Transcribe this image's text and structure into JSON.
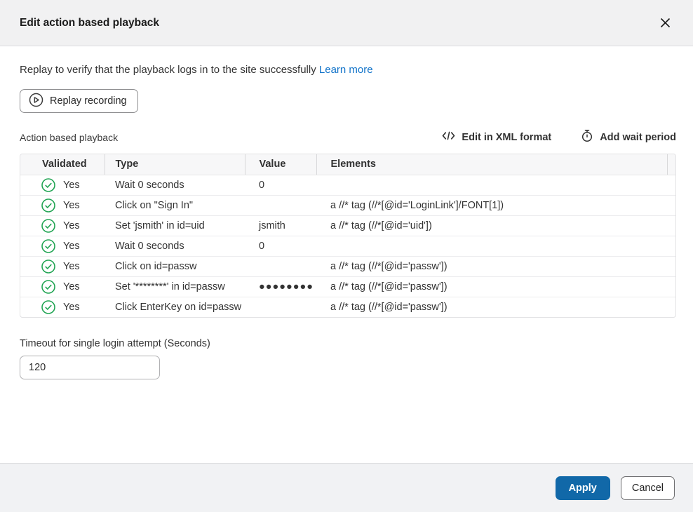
{
  "header": {
    "title": "Edit action based playback"
  },
  "intro": {
    "text": "Replay to verify that the playback logs in to the site successfully",
    "link_label": "Learn more"
  },
  "replay_button": {
    "label": "Replay recording"
  },
  "section": {
    "label": "Action based playback",
    "edit_xml_label": "Edit in XML format",
    "add_wait_label": "Add wait period"
  },
  "table": {
    "columns": [
      "Validated",
      "Type",
      "Value",
      "Elements"
    ],
    "rows": [
      {
        "validated": "Yes",
        "type": "Wait 0 seconds",
        "value": "0",
        "elements": ""
      },
      {
        "validated": "Yes",
        "type": "Click on \"Sign In\"",
        "value": "",
        "elements": "a //* tag (//*[@id='LoginLink']/FONT[1])"
      },
      {
        "validated": "Yes",
        "type": "Set 'jsmith' in id=uid",
        "value": "jsmith",
        "elements": "a //* tag (//*[@id='uid'])"
      },
      {
        "validated": "Yes",
        "type": "Wait 0 seconds",
        "value": "0",
        "elements": ""
      },
      {
        "validated": "Yes",
        "type": "Click on id=passw",
        "value": "",
        "elements": "a //* tag (//*[@id='passw'])"
      },
      {
        "validated": "Yes",
        "type": "Set '********' in id=passw",
        "value": "●●●●●●●●",
        "elements": "a //* tag (//*[@id='passw'])"
      },
      {
        "validated": "Yes",
        "type": "Click EnterKey on id=passw",
        "value": "",
        "elements": "a //* tag (//*[@id='passw'])"
      }
    ]
  },
  "timeout": {
    "label": "Timeout for single login attempt (Seconds)",
    "value": "120"
  },
  "footer": {
    "apply_label": "Apply",
    "cancel_label": "Cancel"
  },
  "colors": {
    "accent_blue": "#1168a8",
    "link_blue": "#1173c9",
    "success_green": "#21a453",
    "header_bg": "#f1f1f2",
    "footer_bg": "#f1f2f4"
  }
}
